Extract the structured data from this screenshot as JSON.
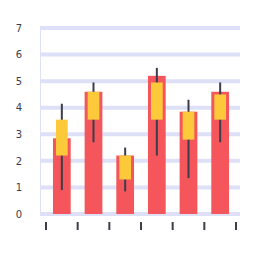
{
  "chart_data": {
    "type": "bar",
    "categories": [
      null,
      null,
      null,
      null,
      null,
      null
    ],
    "values": [
      2.85,
      4.6,
      2.2,
      5.2,
      3.85,
      4.6
    ],
    "open": [
      3.55,
      4.6,
      2.2,
      4.95,
      3.85,
      4.5
    ],
    "close": [
      2.2,
      3.55,
      1.3,
      3.55,
      2.8,
      3.55
    ],
    "high": [
      4.15,
      4.95,
      2.5,
      5.5,
      4.3,
      4.95
    ],
    "low": [
      0.9,
      2.7,
      0.85,
      2.2,
      1.35,
      2.7
    ],
    "color": "#f4565b",
    "ylim": [
      0,
      7
    ],
    "yticks": [
      0,
      1,
      2,
      3,
      4,
      5,
      6,
      7
    ],
    "grid": true
  }
}
